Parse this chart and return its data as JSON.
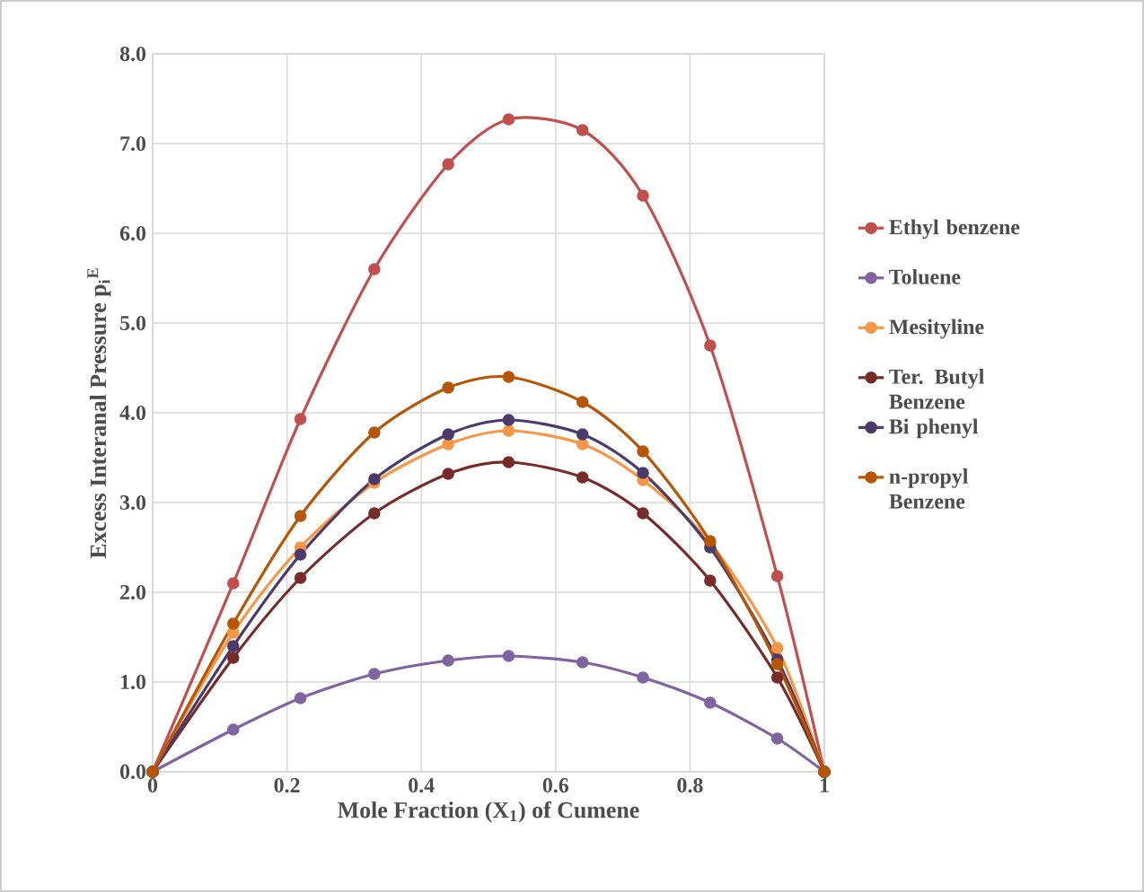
{
  "chart_data": {
    "type": "line",
    "xlabel": "Mole Fraction (X$_{1}$) of Cumene",
    "ylabel": "Excess Interanal Pressure p$_{i}$$^{E}$",
    "x": [
      0,
      0.12,
      0.22,
      0.33,
      0.44,
      0.53,
      0.64,
      0.73,
      0.83,
      0.93,
      1
    ],
    "series": [
      {
        "name": "Ethyl benzene",
        "color": "#c0504d",
        "values": [
          0,
          2.1,
          3.93,
          5.6,
          6.77,
          7.27,
          7.15,
          6.42,
          4.75,
          2.18,
          0
        ]
      },
      {
        "name": "Toluene",
        "color": "#8064a2",
        "values": [
          0,
          0.47,
          0.82,
          1.09,
          1.24,
          1.29,
          1.22,
          1.05,
          0.77,
          0.37,
          0
        ]
      },
      {
        "name": "Mesityline",
        "color": "#f79646",
        "values": [
          0,
          1.55,
          2.5,
          3.22,
          3.65,
          3.8,
          3.65,
          3.25,
          2.55,
          1.38,
          0
        ]
      },
      {
        "name": "Ter. Butyl Benzene",
        "color": "#772c2a",
        "values": [
          0,
          1.27,
          2.16,
          2.88,
          3.32,
          3.45,
          3.28,
          2.88,
          2.13,
          1.05,
          0
        ]
      },
      {
        "name": "Bi phenyl",
        "color": "#4b3b6b",
        "values": [
          0,
          1.4,
          2.42,
          3.26,
          3.76,
          3.92,
          3.76,
          3.33,
          2.5,
          1.25,
          0
        ]
      },
      {
        "name": "n-propyl Benzene",
        "color": "#b65708",
        "values": [
          0,
          1.65,
          2.85,
          3.78,
          4.28,
          4.4,
          4.12,
          3.57,
          2.57,
          1.2,
          0
        ]
      }
    ],
    "xlim": [
      0,
      1
    ],
    "xticks": [
      0,
      0.2,
      0.4,
      0.6,
      0.8,
      1
    ],
    "ylim": [
      0,
      8
    ],
    "yticks": [
      {
        "value": 0,
        "label": "0.0"
      },
      {
        "value": 1,
        "label": "1.0"
      },
      {
        "value": 2,
        "label": "2.0"
      },
      {
        "value": 3,
        "label": "3.0"
      },
      {
        "value": 4,
        "label": "4.0"
      },
      {
        "value": 5,
        "label": "5.0"
      },
      {
        "value": 6,
        "label": "6.0"
      },
      {
        "value": 7,
        "label": "7.0"
      },
      {
        "value": 8,
        "label": "8.0"
      }
    ],
    "grid": true,
    "legend": "right",
    "marker": "circle",
    "line_style": "solid"
  }
}
